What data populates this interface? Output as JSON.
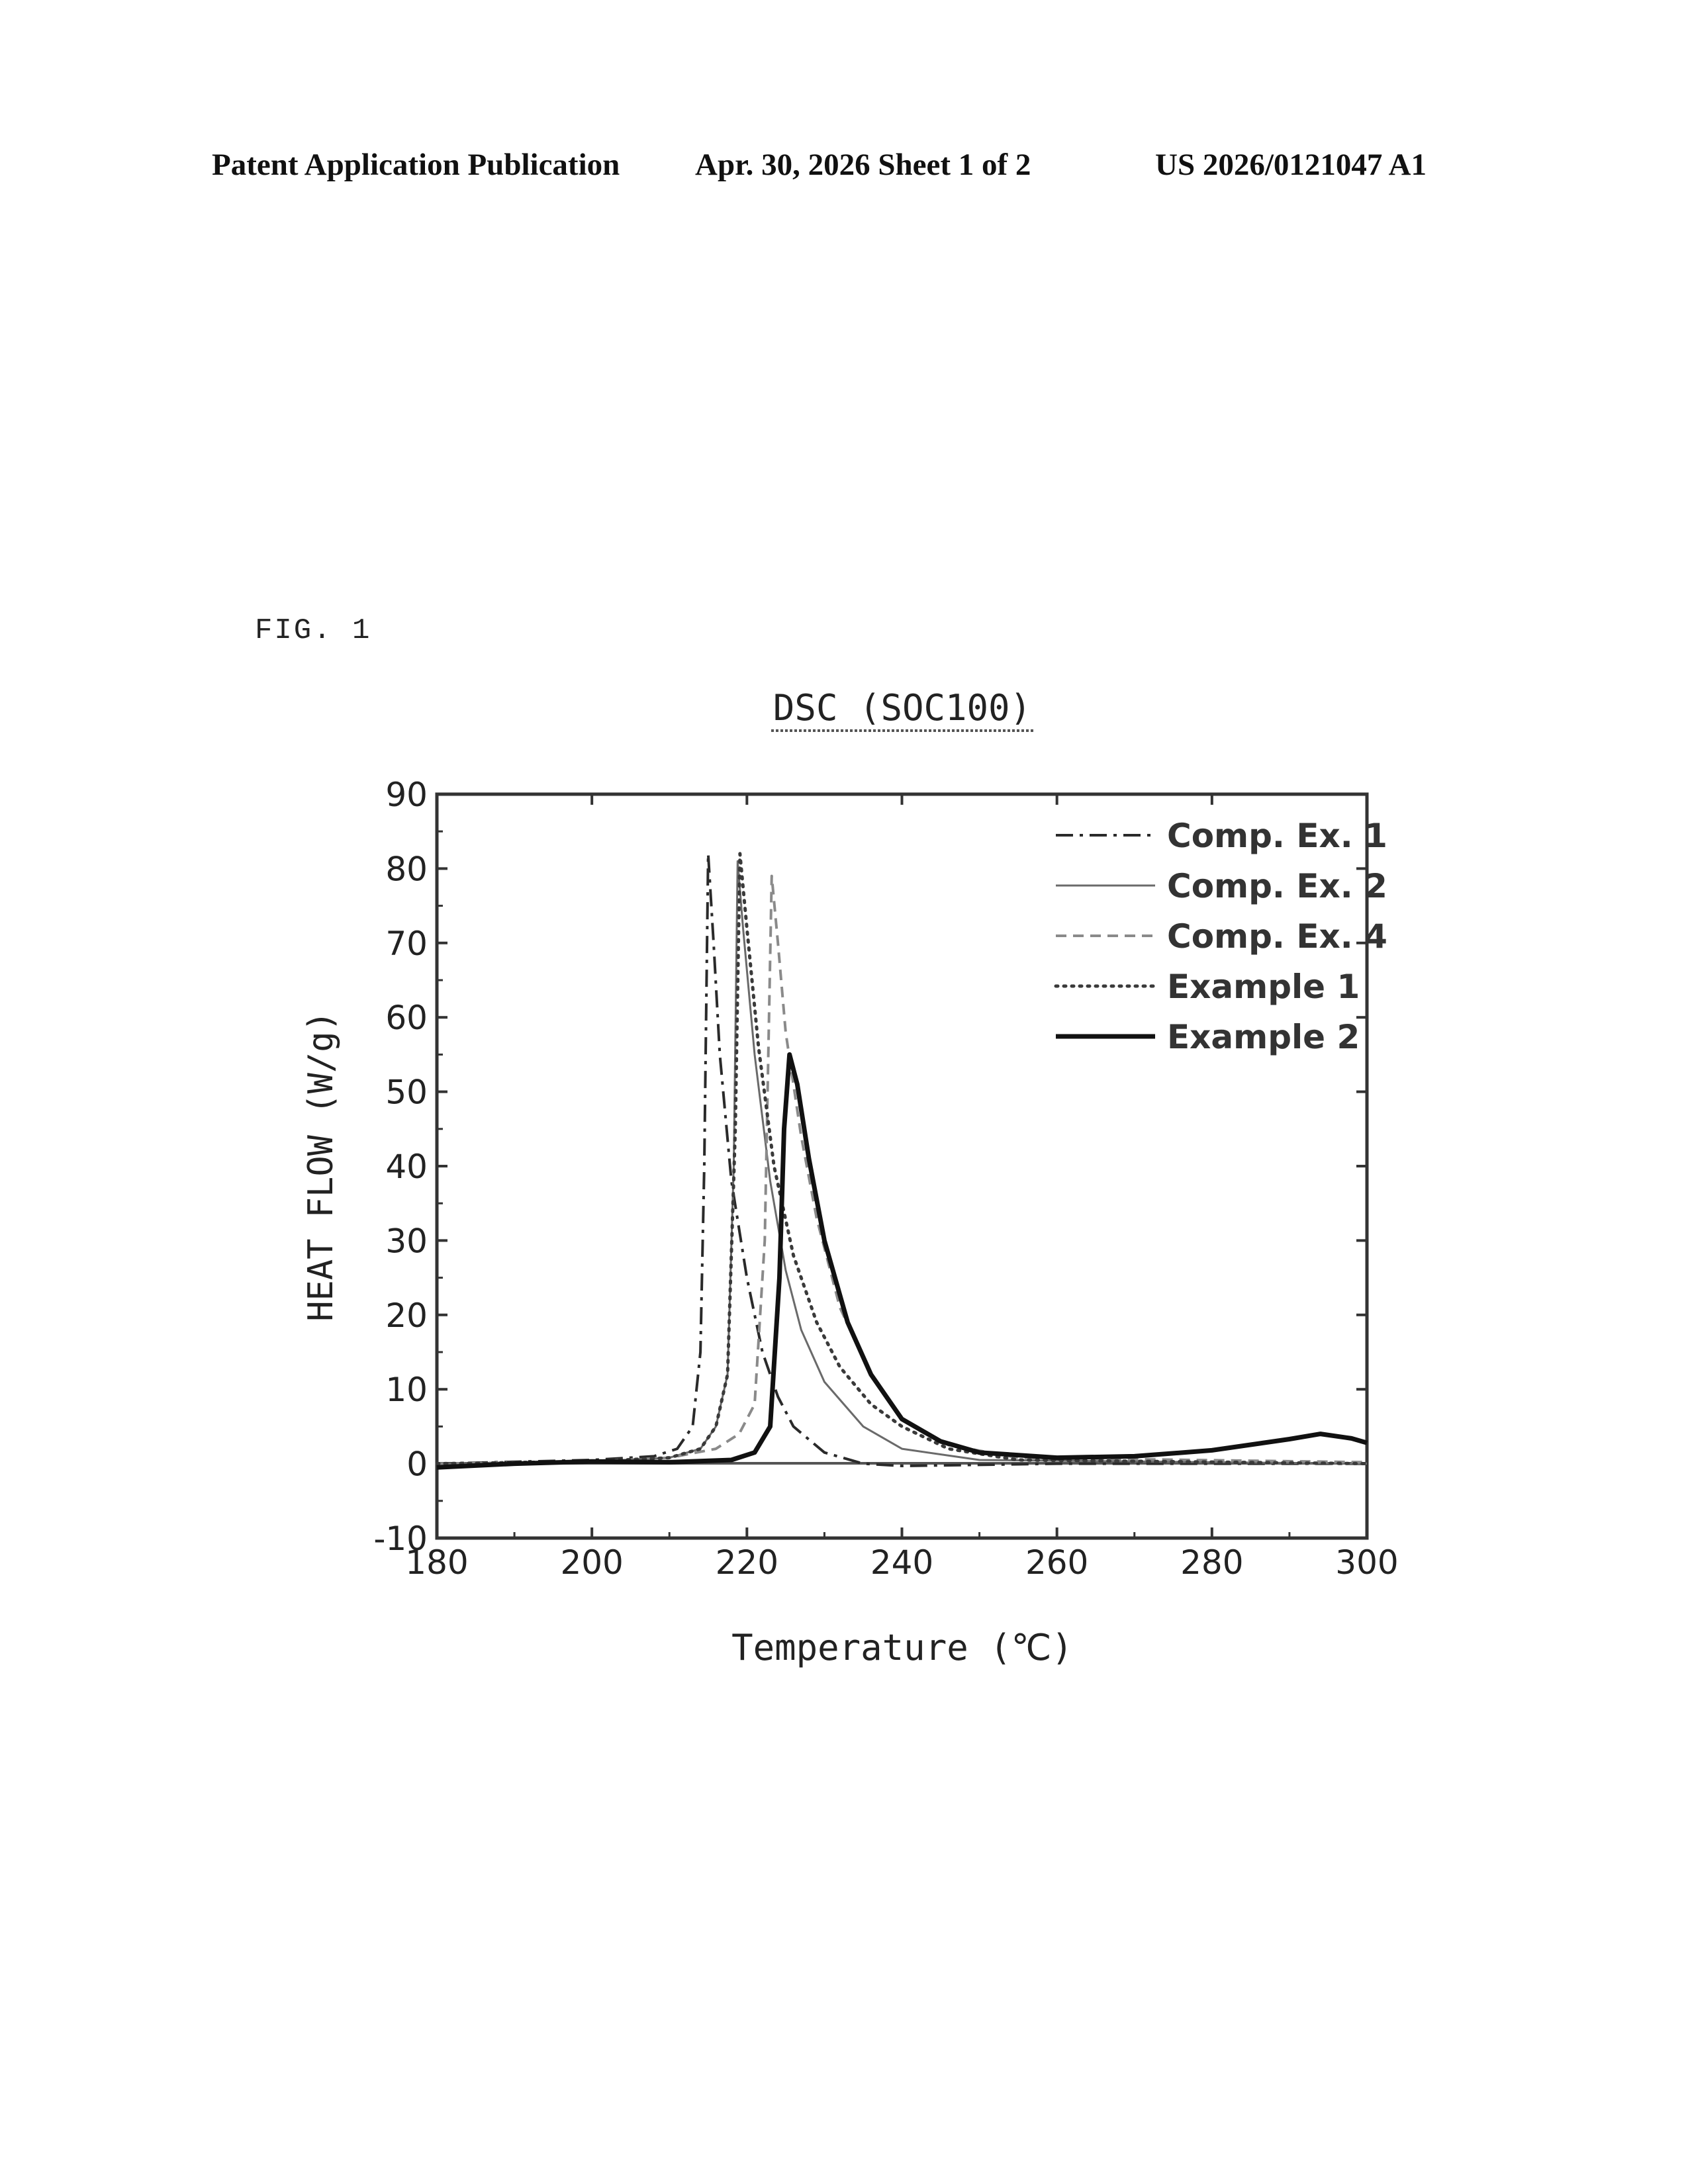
{
  "header": {
    "left": "Patent Application Publication",
    "middle": "Apr. 30, 2026  Sheet 1 of 2",
    "right": "US 2026/0121047 A1"
  },
  "figure_label": "FIG. 1",
  "chart_data": {
    "type": "line",
    "title": "DSC (SOC100)",
    "xlabel": "Temperature (℃)",
    "ylabel": "HEAT FLOW (W/g)",
    "xlim": [
      180,
      300
    ],
    "ylim": [
      -10,
      90
    ],
    "xticks": [
      180,
      200,
      220,
      240,
      260,
      280,
      300
    ],
    "yticks": [
      -10,
      0,
      10,
      20,
      30,
      40,
      50,
      60,
      70,
      80,
      90
    ],
    "grid": false,
    "legend_position": "top-right",
    "series": [
      {
        "name": "Comp. Ex. 1",
        "style": "dash-dot",
        "points": [
          [
            180,
            0
          ],
          [
            200,
            0.5
          ],
          [
            208,
            1
          ],
          [
            211,
            2
          ],
          [
            213,
            5
          ],
          [
            214,
            15
          ],
          [
            214.5,
            40
          ],
          [
            215,
            82
          ],
          [
            215.7,
            70
          ],
          [
            216.5,
            55
          ],
          [
            218,
            38
          ],
          [
            220,
            25
          ],
          [
            222,
            15
          ],
          [
            224,
            9
          ],
          [
            226,
            5
          ],
          [
            230,
            1.5
          ],
          [
            235,
            0
          ],
          [
            240,
            -0.3
          ],
          [
            260,
            0
          ],
          [
            300,
            0
          ]
        ]
      },
      {
        "name": "Comp. Ex. 2",
        "style": "thin-solid",
        "points": [
          [
            180,
            0
          ],
          [
            200,
            0.3
          ],
          [
            210,
            0.8
          ],
          [
            214,
            2
          ],
          [
            216,
            5
          ],
          [
            217.5,
            12
          ],
          [
            218.3,
            40
          ],
          [
            218.8,
            81
          ],
          [
            219.5,
            72
          ],
          [
            221,
            55
          ],
          [
            223,
            38
          ],
          [
            225,
            26
          ],
          [
            227,
            18
          ],
          [
            230,
            11
          ],
          [
            235,
            5
          ],
          [
            240,
            2
          ],
          [
            250,
            0.5
          ],
          [
            300,
            0
          ]
        ]
      },
      {
        "name": "Comp. Ex. 4",
        "style": "dashed",
        "points": [
          [
            180,
            0
          ],
          [
            200,
            0.3
          ],
          [
            210,
            0.8
          ],
          [
            216,
            2
          ],
          [
            219,
            4
          ],
          [
            221,
            8
          ],
          [
            222.3,
            30
          ],
          [
            223.2,
            79
          ],
          [
            224,
            70
          ],
          [
            225,
            58
          ],
          [
            227,
            44
          ],
          [
            229,
            33
          ],
          [
            232,
            21
          ],
          [
            236,
            12
          ],
          [
            240,
            6
          ],
          [
            246,
            2.5
          ],
          [
            255,
            0.8
          ],
          [
            300,
            0.2
          ]
        ]
      },
      {
        "name": "Example 1",
        "style": "dotted",
        "points": [
          [
            180,
            0
          ],
          [
            200,
            0.3
          ],
          [
            210,
            0.8
          ],
          [
            214,
            2
          ],
          [
            216,
            5
          ],
          [
            217.5,
            12
          ],
          [
            218.5,
            45
          ],
          [
            219.1,
            82
          ],
          [
            220,
            72
          ],
          [
            221.5,
            56
          ],
          [
            223.5,
            40
          ],
          [
            226,
            28
          ],
          [
            229,
            19
          ],
          [
            232,
            13
          ],
          [
            236,
            8
          ],
          [
            240,
            5
          ],
          [
            246,
            2
          ],
          [
            255,
            0.5
          ],
          [
            300,
            0
          ]
        ]
      },
      {
        "name": "Example 2",
        "style": "thick-solid",
        "points": [
          [
            180,
            -0.5
          ],
          [
            190,
            0
          ],
          [
            200,
            0.3
          ],
          [
            210,
            0.2
          ],
          [
            218,
            0.5
          ],
          [
            221,
            1.5
          ],
          [
            223,
            5
          ],
          [
            224.2,
            25
          ],
          [
            224.8,
            45
          ],
          [
            225.5,
            55
          ],
          [
            226.5,
            51
          ],
          [
            228,
            41
          ],
          [
            230,
            30
          ],
          [
            233,
            19
          ],
          [
            236,
            12
          ],
          [
            240,
            6
          ],
          [
            245,
            3
          ],
          [
            250,
            1.5
          ],
          [
            260,
            0.8
          ],
          [
            270,
            1
          ],
          [
            280,
            1.8
          ],
          [
            290,
            3.3
          ],
          [
            294,
            4
          ],
          [
            298,
            3.4
          ],
          [
            300,
            2.8
          ]
        ]
      }
    ]
  }
}
